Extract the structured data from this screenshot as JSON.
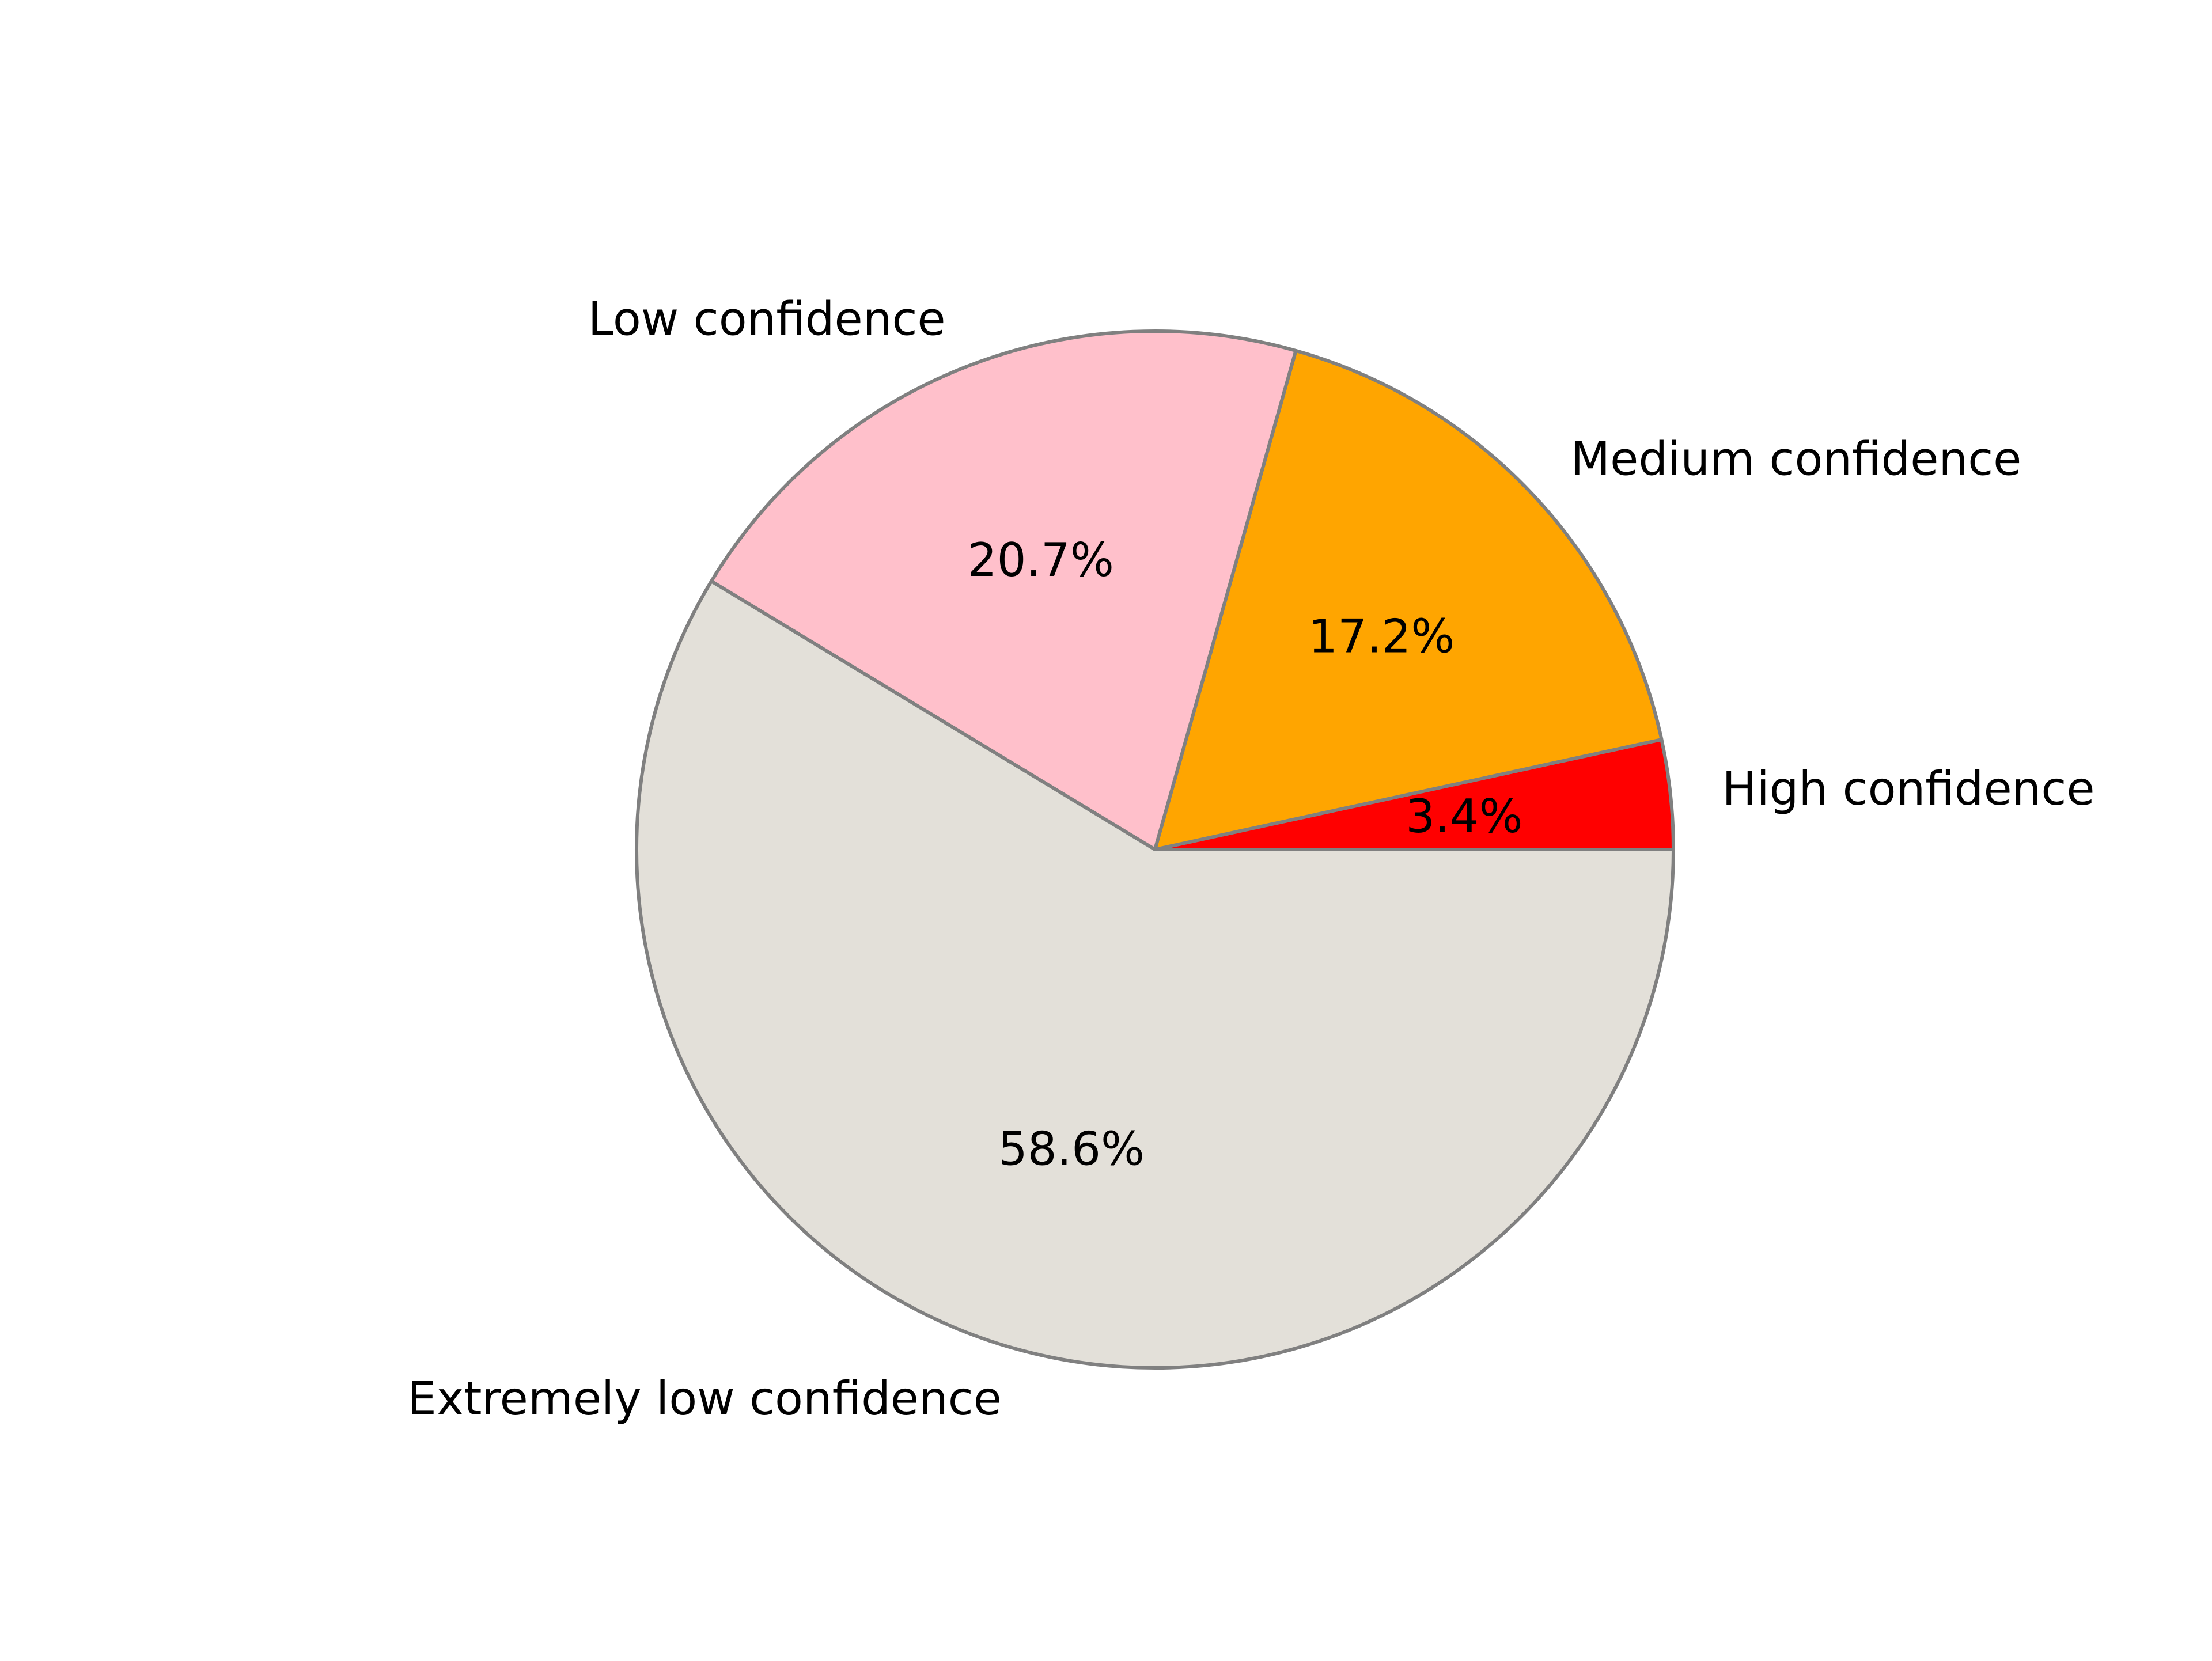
{
  "chart_data": {
    "type": "pie",
    "title": "",
    "categories": [
      "High confidence",
      "Medium confidence",
      "Low confidence",
      "Extremely low confidence"
    ],
    "values": [
      3.4,
      17.2,
      20.7,
      58.6
    ],
    "value_labels": [
      "3.4%",
      "17.2%",
      "20.7%",
      "58.6%"
    ],
    "colors": [
      "#ff0000",
      "#ffa500",
      "#ffc0cb",
      "#e3e0d9"
    ],
    "edge_color": "#808080",
    "start_angle_deg": 0,
    "direction": "counterclockwise",
    "legend": "none"
  }
}
